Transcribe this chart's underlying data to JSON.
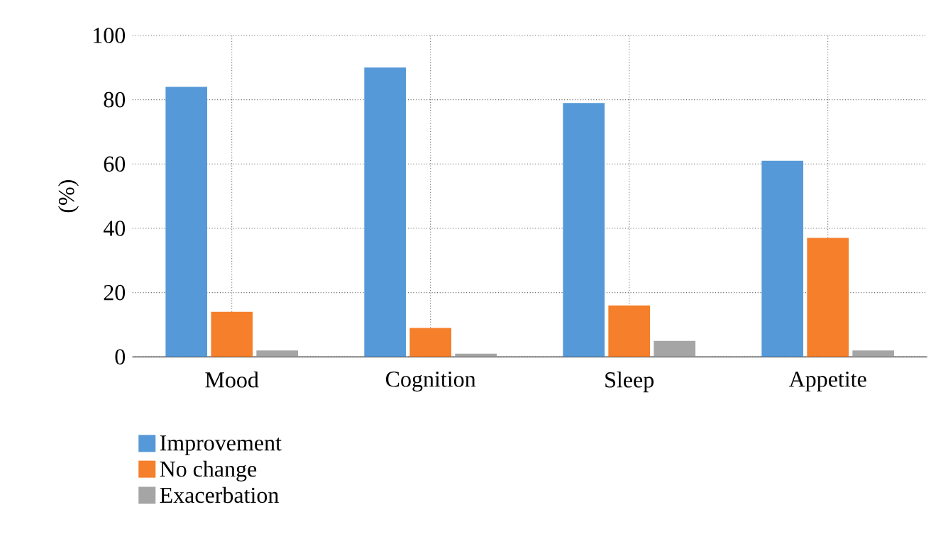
{
  "chart_data": {
    "type": "bar",
    "ylabel": "(%)",
    "categories": [
      "Mood",
      "Cognition",
      "Sleep",
      "Appetite"
    ],
    "series": [
      {
        "name": "Improvement",
        "color": "#5699d8",
        "values": [
          84,
          90,
          79,
          61
        ]
      },
      {
        "name": "No change",
        "color": "#f57f2a",
        "values": [
          14,
          9,
          16,
          37
        ]
      },
      {
        "name": "Exacerbation",
        "color": "#a5a5a5",
        "values": [
          2,
          1,
          5,
          2
        ]
      }
    ],
    "ylim": [
      0,
      100
    ],
    "yticks": [
      0,
      20,
      40,
      60,
      80,
      100
    ],
    "grid": true,
    "legend": "bottom left"
  }
}
